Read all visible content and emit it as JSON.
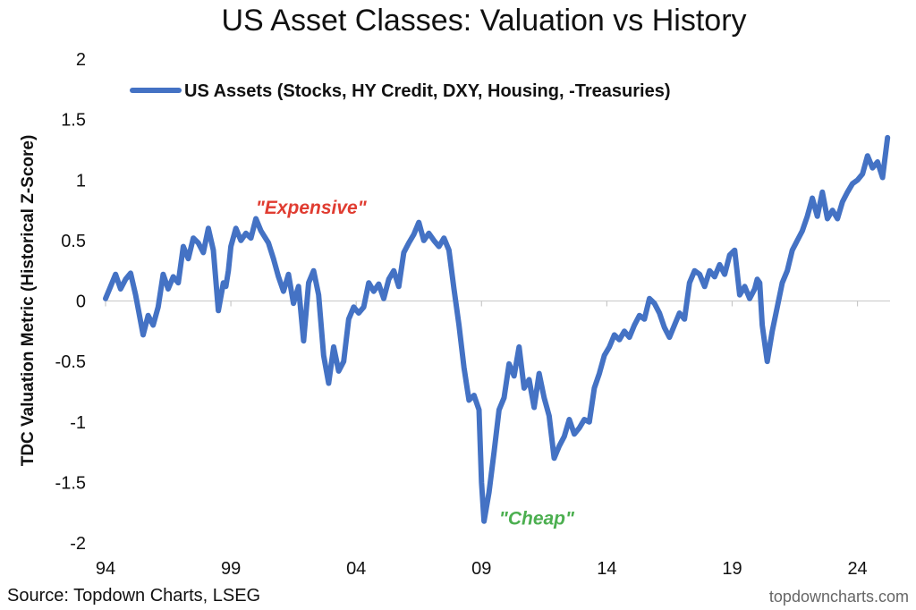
{
  "chart_data": {
    "type": "line",
    "title": "US Asset Classes: Valuation vs History",
    "ylabel": "TDC Valuation Metric (Historical Z-Score)",
    "xlabel": "",
    "xlim": [
      1994,
      2025.3
    ],
    "ylim": [
      -2,
      2
    ],
    "x_ticks": [
      {
        "value": 1994,
        "label": "94"
      },
      {
        "value": 1999,
        "label": "99"
      },
      {
        "value": 2004,
        "label": "04"
      },
      {
        "value": 2009,
        "label": "09"
      },
      {
        "value": 2014,
        "label": "14"
      },
      {
        "value": 2019,
        "label": "19"
      },
      {
        "value": 2024,
        "label": "24"
      }
    ],
    "y_ticks": [
      {
        "value": 2,
        "label": "2"
      },
      {
        "value": 1.5,
        "label": "1.5"
      },
      {
        "value": 1,
        "label": "1"
      },
      {
        "value": 0.5,
        "label": "0.5"
      },
      {
        "value": 0,
        "label": "0"
      },
      {
        "value": -0.5,
        "label": "-0.5"
      },
      {
        "value": -1,
        "label": "-1"
      },
      {
        "value": -1.5,
        "label": "-1.5"
      },
      {
        "value": -2,
        "label": "-2"
      }
    ],
    "grid": false,
    "legend": {
      "position": "top",
      "entries": [
        "US Assets (Stocks, HY Credit, DXY, Housing, -Treasuries)"
      ]
    },
    "series": [
      {
        "name": "US Assets (Stocks, HY Credit, DXY, Housing, -Treasuries)",
        "color": "#4472C4",
        "x": [
          1994.0,
          1994.2,
          1994.4,
          1994.6,
          1994.8,
          1995.0,
          1995.2,
          1995.5,
          1995.7,
          1995.9,
          1996.1,
          1996.3,
          1996.5,
          1996.7,
          1996.9,
          1997.1,
          1997.3,
          1997.5,
          1997.7,
          1997.9,
          1998.1,
          1998.3,
          1998.5,
          1998.7,
          1998.8,
          1998.9,
          1999.0,
          1999.2,
          1999.4,
          1999.6,
          1999.8,
          2000.0,
          2000.2,
          2000.5,
          2000.7,
          2000.9,
          2001.1,
          2001.3,
          2001.5,
          2001.7,
          2001.9,
          2002.1,
          2002.3,
          2002.5,
          2002.7,
          2002.9,
          2003.1,
          2003.3,
          2003.5,
          2003.7,
          2003.9,
          2004.1,
          2004.3,
          2004.5,
          2004.7,
          2004.9,
          2005.1,
          2005.3,
          2005.5,
          2005.7,
          2005.9,
          2006.1,
          2006.3,
          2006.5,
          2006.7,
          2006.9,
          2007.1,
          2007.3,
          2007.5,
          2007.7,
          2007.9,
          2008.1,
          2008.3,
          2008.5,
          2008.7,
          2008.9,
          2009.0,
          2009.1,
          2009.3,
          2009.5,
          2009.7,
          2009.9,
          2010.1,
          2010.3,
          2010.5,
          2010.7,
          2010.9,
          2011.1,
          2011.3,
          2011.5,
          2011.7,
          2011.9,
          2012.1,
          2012.3,
          2012.5,
          2012.7,
          2012.9,
          2013.1,
          2013.3,
          2013.5,
          2013.7,
          2013.9,
          2014.1,
          2014.3,
          2014.5,
          2014.7,
          2014.9,
          2015.1,
          2015.3,
          2015.5,
          2015.7,
          2015.9,
          2016.1,
          2016.3,
          2016.5,
          2016.7,
          2016.9,
          2017.1,
          2017.3,
          2017.5,
          2017.7,
          2017.9,
          2018.1,
          2018.3,
          2018.5,
          2018.7,
          2018.9,
          2019.1,
          2019.3,
          2019.5,
          2019.7,
          2019.9,
          2020.0,
          2020.1,
          2020.2,
          2020.4,
          2020.6,
          2020.8,
          2021.0,
          2021.2,
          2021.4,
          2021.6,
          2021.8,
          2022.0,
          2022.2,
          2022.4,
          2022.6,
          2022.8,
          2023.0,
          2023.2,
          2023.4,
          2023.6,
          2023.8,
          2024.0,
          2024.2,
          2024.4,
          2024.6,
          2024.8,
          2025.0,
          2025.2
        ],
        "values": [
          0.02,
          0.12,
          0.22,
          0.1,
          0.18,
          0.23,
          0.05,
          -0.28,
          -0.12,
          -0.2,
          -0.05,
          0.22,
          0.1,
          0.2,
          0.15,
          0.45,
          0.35,
          0.52,
          0.48,
          0.4,
          0.6,
          0.42,
          -0.08,
          0.15,
          0.12,
          0.25,
          0.45,
          0.6,
          0.5,
          0.56,
          0.52,
          0.68,
          0.58,
          0.48,
          0.35,
          0.2,
          0.08,
          0.22,
          -0.02,
          0.12,
          -0.33,
          0.15,
          0.25,
          0.05,
          -0.45,
          -0.68,
          -0.38,
          -0.58,
          -0.5,
          -0.15,
          -0.05,
          -0.1,
          -0.05,
          0.15,
          0.08,
          0.14,
          0.02,
          0.18,
          0.25,
          0.12,
          0.4,
          0.48,
          0.55,
          0.65,
          0.5,
          0.56,
          0.5,
          0.45,
          0.52,
          0.42,
          0.1,
          -0.2,
          -0.55,
          -0.82,
          -0.78,
          -0.9,
          -1.5,
          -1.82,
          -1.58,
          -1.25,
          -0.9,
          -0.8,
          -0.52,
          -0.62,
          -0.38,
          -0.72,
          -0.65,
          -0.88,
          -0.6,
          -0.8,
          -0.95,
          -1.3,
          -1.2,
          -1.12,
          -0.98,
          -1.1,
          -1.05,
          -0.98,
          -1.0,
          -0.72,
          -0.6,
          -0.45,
          -0.38,
          -0.28,
          -0.32,
          -0.25,
          -0.3,
          -0.2,
          -0.12,
          -0.15,
          0.02,
          -0.02,
          -0.1,
          -0.22,
          -0.3,
          -0.2,
          -0.1,
          -0.15,
          0.15,
          0.25,
          0.22,
          0.12,
          0.25,
          0.2,
          0.3,
          0.22,
          0.38,
          0.42,
          0.05,
          0.12,
          0.02,
          0.1,
          0.18,
          0.15,
          -0.2,
          -0.5,
          -0.25,
          -0.05,
          0.15,
          0.25,
          0.42,
          0.5,
          0.58,
          0.7,
          0.85,
          0.7,
          0.9,
          0.68,
          0.75,
          0.68,
          0.82,
          0.9,
          0.97,
          1.0,
          1.05,
          1.2,
          1.1,
          1.15,
          1.02,
          1.35
        ]
      }
    ],
    "annotations": [
      {
        "text": "\"Expensive\"",
        "x": 2002.2,
        "y": 0.72,
        "color": "#E03C31"
      },
      {
        "text": "\"Cheap\"",
        "x": 2011.2,
        "y": -1.85,
        "color": "#4CAF50"
      }
    ],
    "source": "Source: Topdown Charts, LSEG",
    "credit": "topdowncharts.com"
  }
}
